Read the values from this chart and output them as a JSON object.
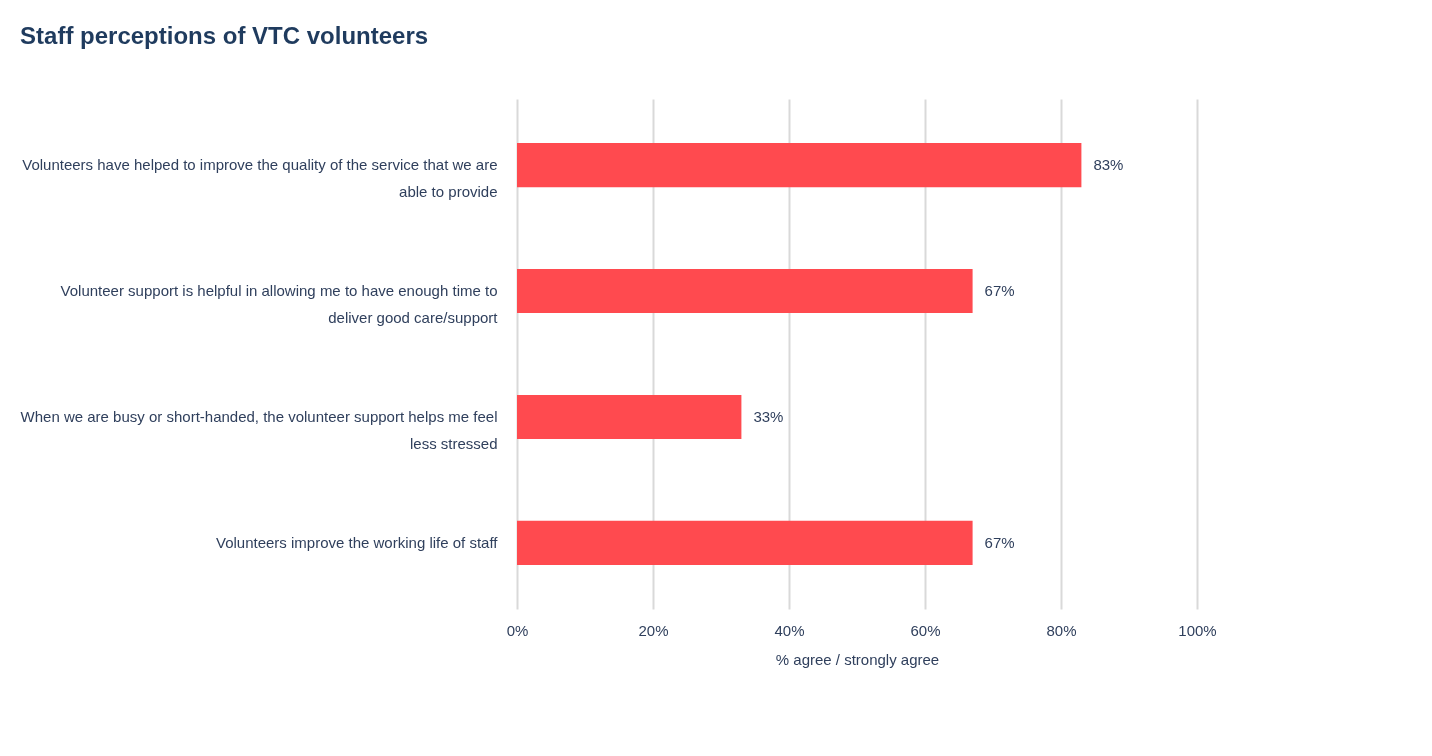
{
  "chart_data": {
    "type": "bar",
    "orientation": "horizontal",
    "title": "Staff perceptions of VTC volunteers",
    "xlabel": "% agree / strongly agree",
    "categories": [
      "Volunteers have helped to improve the quality of the service that we are able to provide",
      "Volunteer support is helpful in allowing me to have enough time to deliver good care/support",
      "When we are busy or short-handed, the volunteer support helps me feel less stressed",
      "Volunteers improve the working life of staff"
    ],
    "values": [
      83,
      67,
      33,
      67
    ],
    "color": "#ff4a4f",
    "value_labels": [
      "83%",
      "67%",
      "33%",
      "67%"
    ],
    "xlim": [
      0,
      100
    ],
    "xticks": [
      {
        "value": 0,
        "label": "0%"
      },
      {
        "value": 20,
        "label": "20%"
      },
      {
        "value": 40,
        "label": "40%"
      },
      {
        "value": 60,
        "label": "60%"
      },
      {
        "value": 80,
        "label": "80%"
      },
      {
        "value": 100,
        "label": "100%"
      }
    ],
    "grid": "x"
  }
}
